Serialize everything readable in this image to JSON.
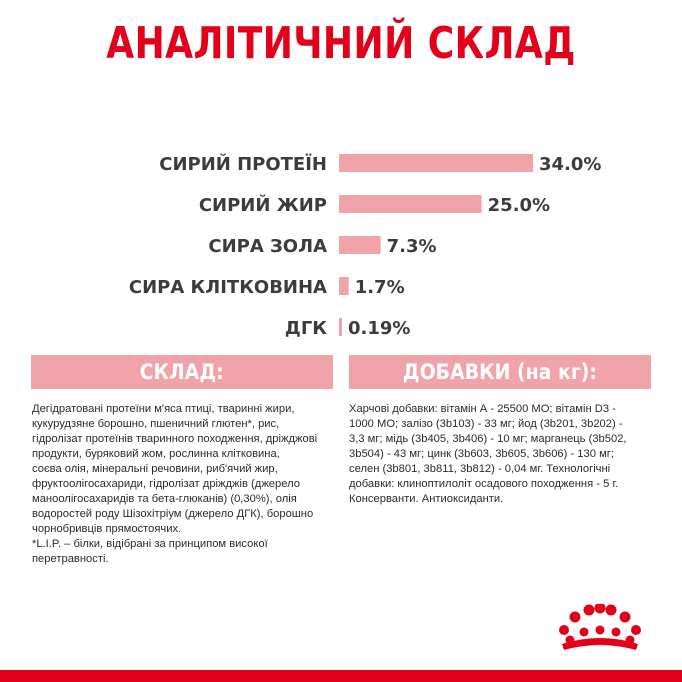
{
  "title": "АНАЛІТИЧНИЙ СКЛАД",
  "chart_data": {
    "type": "bar",
    "orientation": "horizontal",
    "title": "",
    "categories": [
      "СИРИЙ ПРОТЕЇН",
      "СИРИЙ ЖИР",
      "СИРА ЗОЛА",
      "СИРА КЛІТКОВИНА",
      "ДГК"
    ],
    "values": [
      34.0,
      25.0,
      7.3,
      1.7,
      0.19
    ],
    "value_labels": [
      "34.0%",
      "25.0%",
      "7.3%",
      "1.7%",
      "0.19%"
    ],
    "unit": "%",
    "xlim": [
      0,
      34.0
    ],
    "grid": false,
    "bar_color": "#f0a3a8"
  },
  "sections": {
    "composition": {
      "heading": "СКЛАД:",
      "lines": [
        "Дегідратовані протеїни м'яса птиці, тваринні жири,",
        "кукурудзяне борошно, пшеничний глютен*, рис,",
        "гідролізат протеїнів тваринного походження, дріжджові",
        "продукти, буряковий жом, рослинна клітковина,",
        "соєва олія, мінеральні речовини, риб'ячий жир,",
        "фруктоолігосахариди, гідролізат дріжджів (джерело",
        "маноолігосахаридів та бета-глюканів) (0,30%), олія",
        "водоростей роду Шізохітріум (джерело ДГК), борошно",
        "чорнобривців прямостоячих.",
        "*L.I.P. – білки, відібрані за принципом високої",
        "перетравності."
      ]
    },
    "additives": {
      "heading": "ДОБАВКИ (на кг):",
      "lines": [
        "Харчові добавки: вітамін А - 25500 МО; вітамін D3 -",
        "1000 МО; залізо (3b103) - 33 мг; йод (3b201, 3b202) -",
        "3,3 мг; мідь (3b405, 3b406) - 10 мг; марганець (3b502,",
        "3b504) - 43 мг; цинк (3b603, 3b605, 3b606) - 130 мг;",
        "селен (3b801, 3b811, 3b812) - 0,04 мг. Технологічні",
        "добавки: клиноптилоліт осадового походження - 5 г.",
        "Консерванти. Антиоксиданти."
      ]
    }
  },
  "colors": {
    "brand_red": "#e2001a",
    "section_pink": "#f0a3a8",
    "text_dark": "#2b2b2b"
  },
  "logo": {
    "icon": "crown-icon"
  }
}
